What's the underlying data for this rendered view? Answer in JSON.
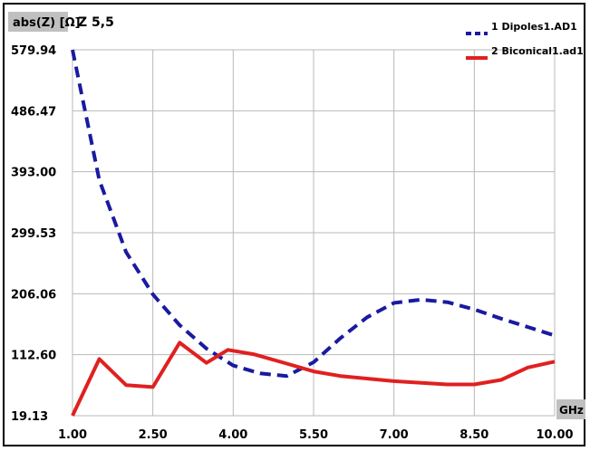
{
  "chart_data": {
    "type": "line",
    "title": "Z 5,5",
    "ylabel": "abs(Z) [Ω]",
    "xlabel": "GHz",
    "xlim": [
      1.0,
      10.0
    ],
    "ylim": [
      19.13,
      579.94
    ],
    "xticks": [
      "1.00",
      "2.50",
      "4.00",
      "5.50",
      "7.00",
      "8.50",
      "10.00"
    ],
    "yticks": [
      "19.13",
      "112.60",
      "206.06",
      "299.53",
      "393.00",
      "486.47",
      "579.94"
    ],
    "grid": true,
    "legend_position": "top-right",
    "series": [
      {
        "name": "1 Dipoles1.AD1",
        "color": "#1a1aa0",
        "style": "dashed",
        "x": [
          1.0,
          1.5,
          2.0,
          2.5,
          3.0,
          3.5,
          4.0,
          4.5,
          5.0,
          5.5,
          6.0,
          6.5,
          7.0,
          7.5,
          8.0,
          8.5,
          9.0,
          9.5,
          10.0
        ],
        "y": [
          579.94,
          380,
          270,
          205,
          158,
          122,
          96,
          84,
          80,
          101,
          138,
          170,
          192,
          197,
          193,
          182,
          168,
          155,
          142
        ]
      },
      {
        "name": "2 Biconical1.ad1",
        "color": "#e02020",
        "style": "solid",
        "x": [
          1.0,
          1.5,
          2.0,
          2.5,
          3.0,
          3.5,
          3.9,
          4.4,
          5.0,
          5.5,
          6.0,
          7.0,
          8.0,
          8.5,
          9.0,
          9.5,
          10.0
        ],
        "y": [
          19.13,
          106,
          66,
          63,
          131,
          100,
          120,
          113,
          99,
          87,
          80,
          72,
          67,
          67,
          74,
          93,
          102
        ]
      }
    ]
  }
}
